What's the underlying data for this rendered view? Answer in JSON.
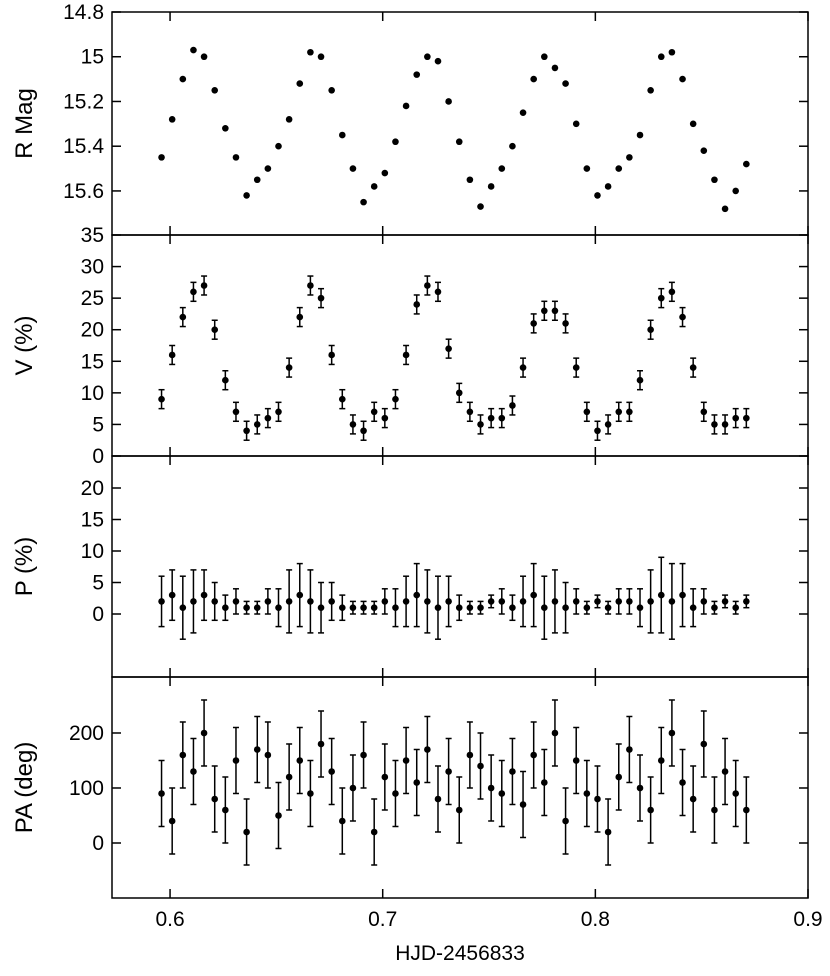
{
  "chart_data": {
    "type": "scatter",
    "xlabel": "HJD-2456833",
    "xlim": [
      0.5727,
      0.9
    ],
    "xticks": [
      0.6,
      0.7,
      0.8,
      0.9
    ],
    "color": "#000000",
    "x": [
      0.596,
      0.601,
      0.606,
      0.611,
      0.616,
      0.621,
      0.626,
      0.631,
      0.636,
      0.641,
      0.646,
      0.651,
      0.656,
      0.661,
      0.666,
      0.671,
      0.676,
      0.681,
      0.686,
      0.691,
      0.696,
      0.701,
      0.706,
      0.711,
      0.716,
      0.721,
      0.726,
      0.731,
      0.736,
      0.741,
      0.746,
      0.751,
      0.756,
      0.761,
      0.766,
      0.771,
      0.776,
      0.781,
      0.786,
      0.791,
      0.796,
      0.801,
      0.806,
      0.811,
      0.816,
      0.821,
      0.826,
      0.831,
      0.836,
      0.841,
      0.846,
      0.851,
      0.856,
      0.861,
      0.866,
      0.871
    ],
    "panels": [
      {
        "ylabel": "R Mag",
        "ylim": [
          15.797,
          14.8
        ],
        "yticks": [
          14.8,
          15,
          15.2,
          15.4,
          15.6
        ],
        "values": [
          15.45,
          15.28,
          15.1,
          14.97,
          15.0,
          15.15,
          15.32,
          15.45,
          15.62,
          15.55,
          15.5,
          15.4,
          15.28,
          15.12,
          14.98,
          15.0,
          15.15,
          15.35,
          15.5,
          15.65,
          15.58,
          15.52,
          15.38,
          15.22,
          15.08,
          15.0,
          15.02,
          15.2,
          15.38,
          15.55,
          15.67,
          15.58,
          15.5,
          15.4,
          15.25,
          15.1,
          15.0,
          15.05,
          15.12,
          15.3,
          15.5,
          15.62,
          15.58,
          15.5,
          15.45,
          15.35,
          15.15,
          15.0,
          14.98,
          15.1,
          15.3,
          15.42,
          15.55,
          15.68,
          15.6,
          15.48
        ]
      },
      {
        "ylabel": "V (%)",
        "ylim": [
          0,
          35
        ],
        "yticks": [
          0,
          5,
          10,
          15,
          20,
          25,
          30,
          35
        ],
        "error": 1.5,
        "values": [
          9,
          16,
          22,
          26,
          27,
          20,
          12,
          7,
          4,
          5,
          6,
          7,
          14,
          22,
          27,
          25,
          16,
          9,
          5,
          4,
          7,
          6,
          9,
          16,
          24,
          27,
          26,
          17,
          10,
          7,
          5,
          6,
          6,
          8,
          14,
          21,
          23,
          23,
          21,
          14,
          7,
          4,
          5,
          7,
          7,
          12,
          20,
          25,
          26,
          22,
          14,
          7,
          5,
          5,
          6,
          6
        ]
      },
      {
        "ylabel": "P (%)",
        "ylim": [
          -10,
          25.08
        ],
        "yticks": [
          0,
          5,
          10,
          15,
          20
        ],
        "values": [
          2,
          3,
          1,
          2,
          3,
          2,
          1,
          2,
          1,
          1,
          2,
          1,
          2,
          3,
          2,
          1,
          2,
          1,
          1,
          1,
          1,
          2,
          1,
          2,
          3,
          2,
          1,
          2,
          1,
          1,
          1,
          2,
          2,
          1,
          2,
          3,
          1,
          2,
          1,
          2,
          1,
          2,
          1,
          2,
          2,
          1,
          2,
          3,
          2,
          3,
          1,
          2,
          1,
          2,
          1,
          2
        ],
        "errors": [
          4,
          4,
          5,
          5,
          4,
          3,
          2,
          2,
          1,
          1,
          2,
          3,
          5,
          5,
          5,
          4,
          3,
          2,
          1,
          1,
          1,
          2,
          3,
          4,
          5,
          5,
          5,
          4,
          2,
          1,
          1,
          1,
          2,
          2,
          4,
          5,
          5,
          5,
          4,
          2,
          1,
          1,
          1,
          2,
          2,
          3,
          5,
          6,
          6,
          5,
          3,
          2,
          1,
          1,
          1,
          1
        ]
      },
      {
        "ylabel": "PA (deg)",
        "ylim": [
          -100,
          301.8
        ],
        "yticks": [
          0,
          100,
          200
        ],
        "error": 60,
        "values": [
          90,
          40,
          160,
          130,
          200,
          80,
          60,
          150,
          20,
          170,
          160,
          50,
          120,
          150,
          90,
          180,
          130,
          40,
          100,
          160,
          20,
          120,
          90,
          150,
          110,
          170,
          80,
          130,
          60,
          160,
          140,
          100,
          90,
          130,
          70,
          160,
          110,
          200,
          40,
          150,
          90,
          80,
          20,
          120,
          170,
          100,
          60,
          150,
          200,
          110,
          80,
          180,
          60,
          130,
          90,
          60
        ]
      }
    ]
  }
}
